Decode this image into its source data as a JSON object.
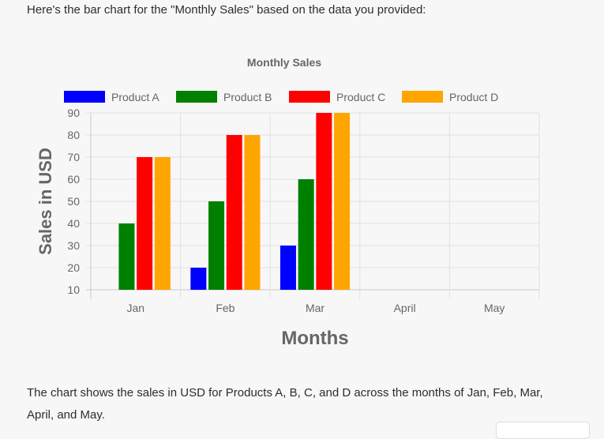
{
  "message": {
    "intro": "Here's the bar chart for the \"Monthly Sales\" based on the data you provided:",
    "outro": "The chart shows the sales in USD for Products A, B, C, and D across the months of Jan, Feb, Mar, April, and May."
  },
  "chart_data": {
    "type": "bar",
    "title": "Monthly Sales",
    "xlabel": "Months",
    "ylabel": "Sales in USD",
    "categories": [
      "Jan",
      "Feb",
      "Mar",
      "April",
      "May"
    ],
    "ylim": [
      10,
      90
    ],
    "yticks": [
      10,
      20,
      30,
      40,
      50,
      60,
      70,
      80,
      90
    ],
    "grid": true,
    "legend_position": "top",
    "series": [
      {
        "name": "Product A",
        "color": "#0000ff",
        "values": [
          10,
          20,
          30,
          null,
          null
        ]
      },
      {
        "name": "Product B",
        "color": "#008000",
        "values": [
          40,
          50,
          60,
          null,
          null
        ]
      },
      {
        "name": "Product C",
        "color": "#ff0000",
        "values": [
          70,
          80,
          90,
          null,
          null
        ]
      },
      {
        "name": "Product D",
        "color": "#ffa500",
        "values": [
          70,
          80,
          90,
          null,
          null
        ]
      }
    ]
  }
}
